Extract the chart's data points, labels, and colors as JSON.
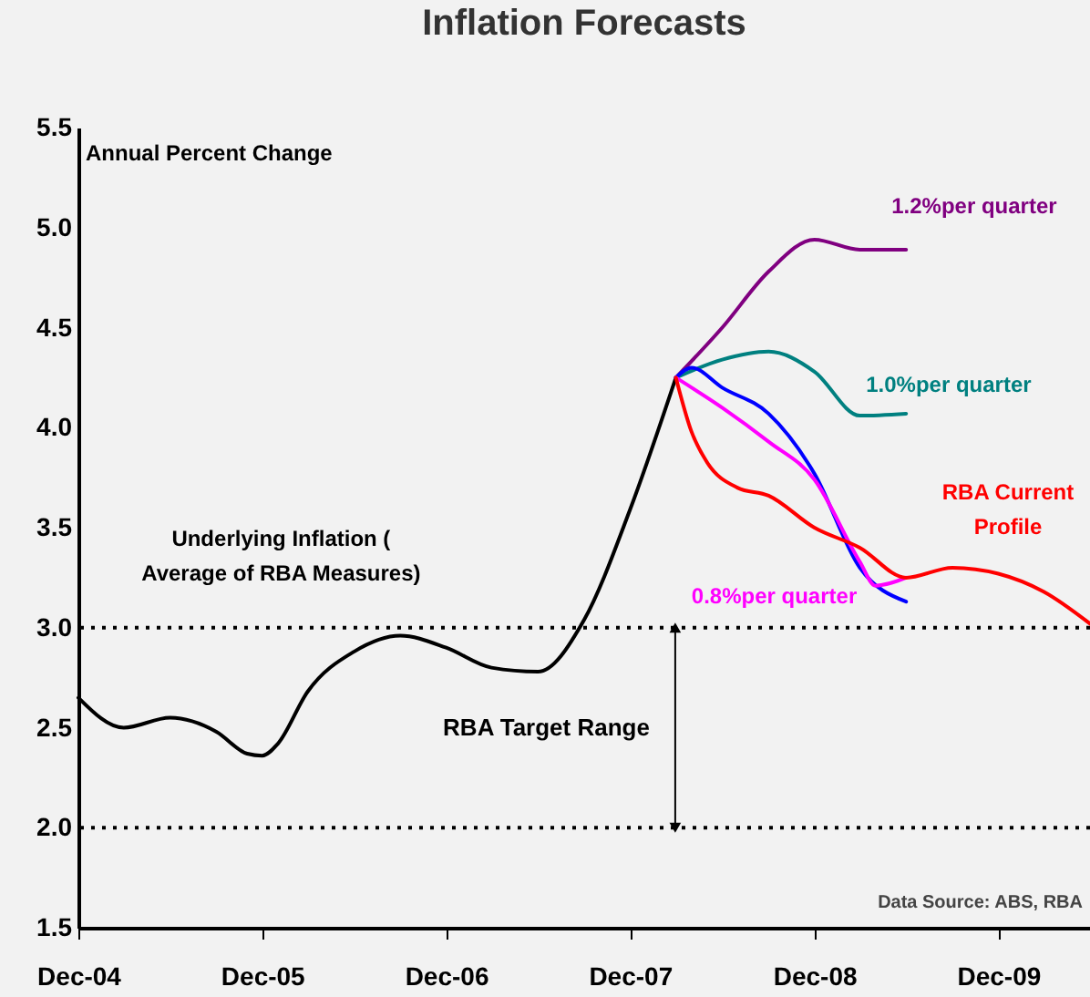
{
  "chart_data": {
    "type": "line",
    "title": "Inflation Forecasts",
    "ylabel": "Annual Percent Change",
    "xlim": [
      "2004-12",
      "2010-06"
    ],
    "ylim": [
      1.5,
      5.5
    ],
    "xticks": [
      {
        "value": "2004-12",
        "label": "Dec-04"
      },
      {
        "value": "2005-12",
        "label": "Dec-05"
      },
      {
        "value": "2006-12",
        "label": "Dec-06"
      },
      {
        "value": "2007-12",
        "label": "Dec-07"
      },
      {
        "value": "2008-12",
        "label": "Dec-08"
      },
      {
        "value": "2009-12",
        "label": "Dec-09"
      }
    ],
    "yticks": [
      {
        "value": 1.5,
        "label": "1.5"
      },
      {
        "value": 2,
        "label": "2.0"
      },
      {
        "value": 2.5,
        "label": "2.5"
      },
      {
        "value": 3,
        "label": "3.0"
      },
      {
        "value": 3.5,
        "label": "3.5"
      },
      {
        "value": 4,
        "label": "4.0"
      },
      {
        "value": 4.5,
        "label": "4.5"
      },
      {
        "value": 5,
        "label": "5.0"
      },
      {
        "value": 5.5,
        "label": "5.5"
      }
    ],
    "series": [
      {
        "name": "Underlying Inflation ( Average of RBA Measures)",
        "color": "#000000",
        "x": [
          "2004-12",
          "2005-03",
          "2005-06",
          "2005-09",
          "2005-11",
          "2005-12",
          "2006-01",
          "2006-03",
          "2006-06",
          "2006-09",
          "2006-12",
          "2007-03",
          "2007-06",
          "2007-09",
          "2007-12",
          "2008-03"
        ],
        "values": [
          2.65,
          2.5,
          2.55,
          2.48,
          2.37,
          2.36,
          2.42,
          2.68,
          2.88,
          2.96,
          2.9,
          2.8,
          2.78,
          3.04,
          3.59,
          4.25
        ]
      },
      {
        "name": "1.2%per quarter",
        "color": "#800080",
        "x": [
          "2008-03",
          "2008-06",
          "2008-09",
          "2008-12",
          "2009-03",
          "2009-06"
        ],
        "values": [
          4.25,
          4.5,
          4.78,
          4.94,
          4.89,
          4.89
        ]
      },
      {
        "name": "1.0%per quarter",
        "color": "#008080",
        "x": [
          "2008-03",
          "2008-06",
          "2008-09",
          "2008-12",
          "2009-03",
          "2009-06"
        ],
        "values": [
          4.25,
          4.34,
          4.38,
          4.28,
          4.06,
          4.07
        ]
      },
      {
        "color": "#0000ff",
        "x": [
          "2008-03",
          "2008-04",
          "2008-06",
          "2008-09",
          "2008-12",
          "2009-03",
          "2009-06"
        ],
        "values": [
          4.25,
          4.3,
          4.2,
          4.07,
          3.77,
          3.3,
          3.13
        ]
      },
      {
        "name": "0.8%per quarter",
        "color": "#ff00ff",
        "x": [
          "2008-03",
          "2008-06",
          "2008-09",
          "2008-12",
          "2009-03",
          "2009-04",
          "2009-06"
        ],
        "values": [
          4.25,
          4.1,
          3.93,
          3.74,
          3.33,
          3.21,
          3.25
        ]
      },
      {
        "name": "RBA Current Profile",
        "color": "#ff0000",
        "x": [
          "2008-03",
          "2008-04",
          "2008-05",
          "2008-07",
          "2008-09",
          "2008-12",
          "2009-03",
          "2009-06",
          "2009-09",
          "2009-12",
          "2010-03",
          "2010-06"
        ],
        "values": [
          4.25,
          3.98,
          3.83,
          3.7,
          3.66,
          3.5,
          3.4,
          3.25,
          3.3,
          3.27,
          3.18,
          3.02
        ]
      }
    ],
    "ref_lines": [
      {
        "axis": "y",
        "value": 3,
        "color": "#000000",
        "line_style": "dotted"
      },
      {
        "axis": "y",
        "value": 2,
        "color": "#000000",
        "line_style": "dotted"
      }
    ],
    "annotations": [
      "RBA Target Range",
      "Data Source: ABS, RBA"
    ],
    "line_style": "solid",
    "legend": false
  }
}
